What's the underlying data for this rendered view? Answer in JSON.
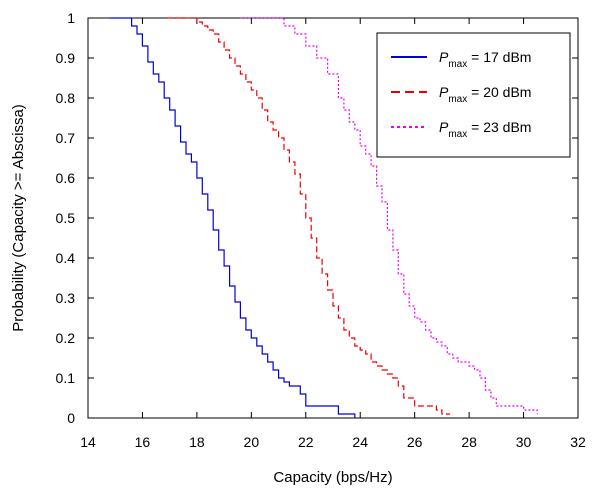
{
  "chart_data": {
    "type": "line",
    "xlabel": "Capacity (bps/Hz)",
    "ylabel": "Probability (Capacity >= Abscissa)",
    "xlim": [
      14,
      32
    ],
    "ylim": [
      0,
      1
    ],
    "xticks": [
      14,
      16,
      18,
      20,
      22,
      24,
      26,
      28,
      30,
      32
    ],
    "yticks": [
      0,
      0.1,
      0.2,
      0.3,
      0.4,
      0.5,
      0.6,
      0.7,
      0.8,
      0.9,
      1
    ],
    "ytick_labels": [
      "0",
      "0.1",
      "0.2",
      "0.3",
      "0.4",
      "0.5",
      "0.6",
      "0.7",
      "0.8",
      "0.9",
      "1"
    ],
    "grid": false,
    "legend_position": "top-right",
    "series": [
      {
        "legend_symbol": "P",
        "legend_subscript": "max",
        "legend_suffix": " = 17 dBm",
        "color": "#0000dd",
        "dash": "solid",
        "x": [
          14.8,
          15.4,
          15.6,
          15.8,
          16.0,
          16.2,
          16.4,
          16.6,
          16.8,
          17.0,
          17.2,
          17.4,
          17.6,
          17.8,
          18.0,
          18.2,
          18.4,
          18.6,
          18.8,
          19.0,
          19.2,
          19.4,
          19.6,
          19.8,
          20.0,
          20.2,
          20.4,
          20.6,
          20.8,
          21.0,
          21.2,
          21.4,
          21.6,
          21.8,
          22.0,
          22.2,
          23.0,
          23.2,
          23.4,
          23.8
        ],
        "y": [
          1.0,
          1.0,
          0.98,
          0.96,
          0.93,
          0.89,
          0.86,
          0.84,
          0.8,
          0.77,
          0.73,
          0.69,
          0.66,
          0.64,
          0.6,
          0.56,
          0.52,
          0.47,
          0.42,
          0.38,
          0.33,
          0.29,
          0.25,
          0.22,
          0.2,
          0.18,
          0.16,
          0.14,
          0.12,
          0.1,
          0.09,
          0.08,
          0.08,
          0.06,
          0.03,
          0.03,
          0.03,
          0.01,
          0.01,
          0.0
        ]
      },
      {
        "legend_symbol": "P",
        "legend_subscript": "max",
        "legend_suffix": " = 20 dBm",
        "color": "#ee0000",
        "dash": "dashed",
        "x": [
          16.9,
          17.8,
          18.0,
          18.2,
          18.4,
          18.6,
          18.8,
          19.0,
          19.2,
          19.4,
          19.6,
          19.8,
          20.0,
          20.2,
          20.4,
          20.6,
          20.8,
          21.0,
          21.2,
          21.4,
          21.6,
          21.8,
          22.0,
          22.2,
          22.4,
          22.6,
          22.8,
          23.0,
          23.2,
          23.4,
          23.6,
          23.8,
          24.0,
          24.2,
          24.4,
          24.6,
          24.8,
          25.0,
          25.2,
          25.4,
          25.6,
          26.0,
          26.4,
          26.8,
          27.0,
          27.3
        ],
        "y": [
          1.0,
          1.0,
          0.99,
          0.98,
          0.97,
          0.96,
          0.94,
          0.92,
          0.9,
          0.88,
          0.86,
          0.84,
          0.82,
          0.8,
          0.77,
          0.74,
          0.72,
          0.7,
          0.67,
          0.64,
          0.61,
          0.56,
          0.5,
          0.45,
          0.4,
          0.36,
          0.32,
          0.28,
          0.25,
          0.22,
          0.2,
          0.18,
          0.17,
          0.16,
          0.14,
          0.13,
          0.12,
          0.11,
          0.1,
          0.08,
          0.05,
          0.03,
          0.03,
          0.02,
          0.01,
          0.01
        ]
      },
      {
        "legend_symbol": "P",
        "legend_subscript": "max",
        "legend_suffix": " = 23 dBm",
        "color": "#ee00ee",
        "dash": "dotted",
        "x": [
          19.6,
          20.8,
          21.2,
          21.6,
          22.0,
          22.4,
          22.8,
          23.2,
          23.4,
          23.6,
          23.8,
          24.0,
          24.2,
          24.4,
          24.6,
          24.8,
          25.0,
          25.2,
          25.4,
          25.6,
          25.8,
          26.0,
          26.2,
          26.4,
          26.6,
          26.8,
          27.0,
          27.2,
          27.4,
          27.6,
          27.8,
          28.0,
          28.2,
          28.4,
          28.6,
          28.8,
          29.0,
          29.5,
          30.0,
          30.5
        ],
        "y": [
          1.0,
          1.0,
          0.98,
          0.96,
          0.93,
          0.9,
          0.86,
          0.8,
          0.77,
          0.74,
          0.72,
          0.68,
          0.66,
          0.63,
          0.58,
          0.54,
          0.47,
          0.42,
          0.36,
          0.31,
          0.28,
          0.25,
          0.24,
          0.22,
          0.2,
          0.19,
          0.18,
          0.16,
          0.15,
          0.14,
          0.14,
          0.13,
          0.12,
          0.1,
          0.07,
          0.05,
          0.03,
          0.03,
          0.02,
          0.01
        ]
      }
    ]
  }
}
